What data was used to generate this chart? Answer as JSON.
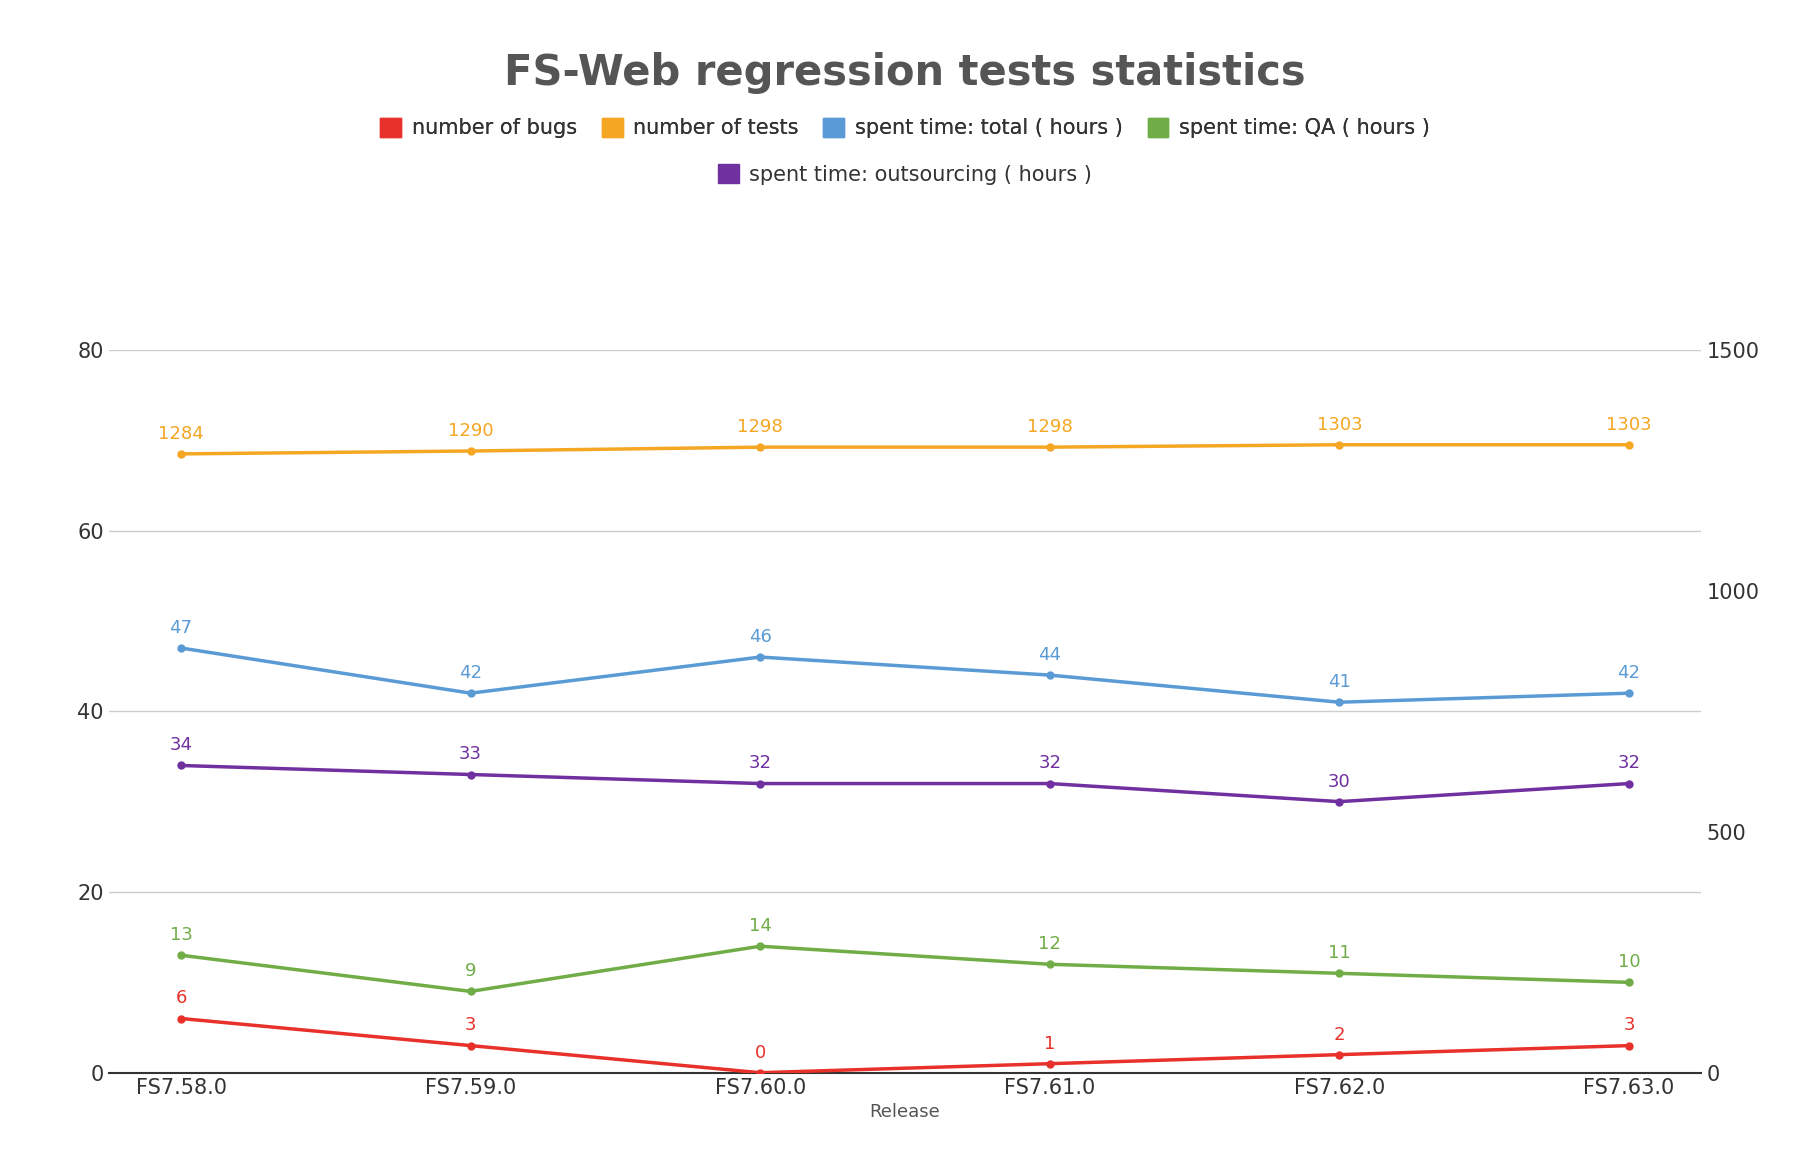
{
  "title": "FS-Web regression tests statistics",
  "title_fontsize": 30,
  "title_color": "#555555",
  "title_fontweight": "bold",
  "xlabel": "Release",
  "xlabel_fontsize": 13,
  "xlabel_color": "#555555",
  "categories": [
    "FS7.58.0",
    "FS7.59.0",
    "FS7.60.0",
    "FS7.61.0",
    "FS7.62.0",
    "FS7.63.0"
  ],
  "series": [
    {
      "label": "number of bugs",
      "color": "#e8312a",
      "values": [
        6,
        3,
        0,
        1,
        2,
        3
      ],
      "axis": "left",
      "zorder": 3,
      "annot_va": "bottom"
    },
    {
      "label": "number of tests",
      "color": "#f5a623",
      "values": [
        1284,
        1290,
        1298,
        1298,
        1303,
        1303
      ],
      "axis": "right",
      "zorder": 3,
      "annot_va": "bottom"
    },
    {
      "label": "spent time: total ( hours )",
      "color": "#5b9bd5",
      "values": [
        47,
        42,
        46,
        44,
        41,
        42
      ],
      "axis": "left",
      "zorder": 3,
      "annot_va": "bottom"
    },
    {
      "label": "spent time: QA ( hours )",
      "color": "#70ad47",
      "values": [
        13,
        9,
        14,
        12,
        11,
        10
      ],
      "axis": "left",
      "zorder": 3,
      "annot_va": "bottom"
    },
    {
      "label": "spent time: outsourcing ( hours )",
      "color": "#7030a0",
      "values": [
        34,
        33,
        32,
        32,
        30,
        32
      ],
      "axis": "left",
      "zorder": 3,
      "annot_va": "bottom"
    }
  ],
  "left_ylim": [
    0,
    80
  ],
  "right_ylim": [
    0,
    1500
  ],
  "left_yticks": [
    0,
    20,
    40,
    60,
    80
  ],
  "right_yticks": [
    0,
    500,
    1000,
    1500
  ],
  "background_color": "#ffffff",
  "grid_color": "#cccccc",
  "linewidth": 2.5,
  "marker": "o",
  "markersize": 5,
  "legend_fontsize": 15,
  "legend_color": "#333333",
  "annotation_fontsize": 13,
  "tick_fontsize": 15,
  "tick_color": "#333333",
  "axis_color": "#555555"
}
